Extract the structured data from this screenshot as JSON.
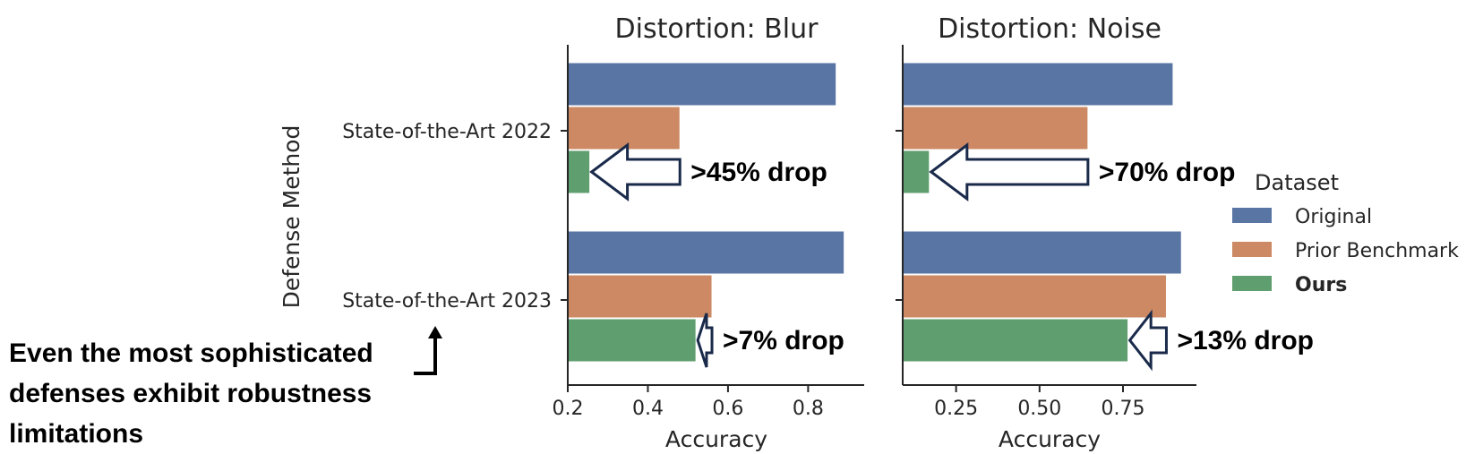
{
  "chart_data": [
    {
      "type": "bar",
      "orientation": "horizontal",
      "title": "Distortion: Blur",
      "xlabel": "Accuracy",
      "ylabel": "Defense Method",
      "xlim": [
        0.2,
        0.94
      ],
      "xticks": [
        "0.2",
        "0.4",
        "0.6",
        "0.8"
      ],
      "xtick_values": [
        0.2,
        0.4,
        0.6,
        0.8
      ],
      "categories": [
        "State-of-the-Art 2022",
        "State-of-the-Art 2023"
      ],
      "series": [
        {
          "name": "Original",
          "values": [
            0.87,
            0.89
          ]
        },
        {
          "name": "Prior Benchmark",
          "values": [
            0.48,
            0.56
          ]
        },
        {
          "name": "Ours",
          "values": [
            0.255,
            0.52
          ]
        }
      ],
      "annotations": [
        ">45% drop",
        ">7% drop"
      ]
    },
    {
      "type": "bar",
      "orientation": "horizontal",
      "title": "Distortion: Noise",
      "xlabel": "Accuracy",
      "ylabel": "",
      "xlim": [
        0.09,
        0.97
      ],
      "xticks": [
        "0.25",
        "0.50",
        "0.75"
      ],
      "xtick_values": [
        0.25,
        0.5,
        0.75
      ],
      "categories": [
        "State-of-the-Art 2022",
        "State-of-the-Art 2023"
      ],
      "series": [
        {
          "name": "Original",
          "values": [
            0.9,
            0.925
          ]
        },
        {
          "name": "Prior Benchmark",
          "values": [
            0.645,
            0.88
          ]
        },
        {
          "name": "Ours",
          "values": [
            0.17,
            0.765
          ]
        }
      ],
      "annotations": [
        ">70% drop",
        ">13% drop"
      ]
    }
  ],
  "legend": {
    "title": "Dataset",
    "placement": "right",
    "items": [
      {
        "label": "Original",
        "color": "#5875a4",
        "bold": false
      },
      {
        "label": "Prior Benchmark",
        "color": "#cc8963",
        "bold": false
      },
      {
        "label": "Ours",
        "color": "#5f9e6e",
        "bold": true
      }
    ]
  },
  "colors": {
    "original": "#5875a4",
    "prior": "#cc8963",
    "ours": "#5f9e6e",
    "arrow_stroke": "#1a2a4a"
  },
  "note": {
    "lines": [
      "Even the most sophisticated",
      "defenses exhibit robustness",
      "limitations"
    ]
  }
}
